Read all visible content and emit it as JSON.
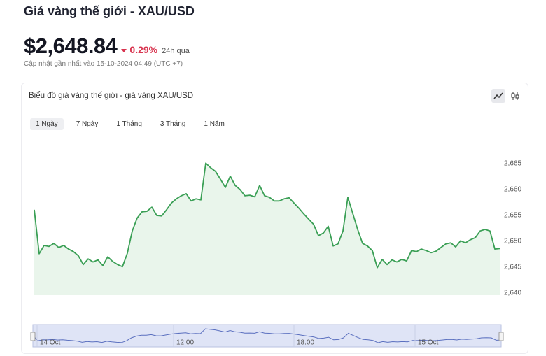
{
  "header": {
    "title": "Giá vàng thế giới - XAU/USD",
    "price": "$2,648.84",
    "change": "0.29%",
    "period": "24h qua",
    "updated": "Cập nhật gần nhất vào 15-10-2024 04:49 (UTC +7)"
  },
  "card": {
    "title": "Biểu đồ giá vàng thế giới - giá vàng XAU/USD",
    "tabs": [
      "1 Ngày",
      "7 Ngày",
      "1 Tháng",
      "3 Tháng",
      "1 Năm"
    ],
    "selected_tab": 0
  },
  "chart_data": {
    "type": "line",
    "color": "#3a9f55",
    "fill": "#e9f5eb",
    "values": [
      2656.1,
      2647.6,
      2649.2,
      2649.0,
      2649.6,
      2648.8,
      2649.2,
      2648.5,
      2648.0,
      2647.2,
      2645.5,
      2646.6,
      2646.0,
      2646.4,
      2645.3,
      2647.0,
      2646.1,
      2645.5,
      2645.1,
      2647.7,
      2652.0,
      2654.5,
      2655.7,
      2655.8,
      2656.6,
      2655.0,
      2654.9,
      2656.1,
      2657.4,
      2658.2,
      2658.8,
      2659.2,
      2657.8,
      2658.2,
      2658.0,
      2665.1,
      2664.2,
      2663.5,
      2662.0,
      2660.4,
      2662.6,
      2660.8,
      2660.0,
      2658.8,
      2658.9,
      2658.6,
      2660.8,
      2658.8,
      2658.5,
      2657.8,
      2657.8,
      2658.2,
      2658.4,
      2657.4,
      2656.4,
      2655.3,
      2654.3,
      2653.3,
      2651.1,
      2651.6,
      2652.9,
      2649.1,
      2649.5,
      2652.0,
      2658.5,
      2655.4,
      2652.3,
      2649.6,
      2649.1,
      2648.2,
      2644.9,
      2646.5,
      2645.5,
      2646.4,
      2646.0,
      2646.5,
      2646.2,
      2648.2,
      2648.0,
      2648.5,
      2648.2,
      2647.8,
      2648.1,
      2648.8,
      2649.5,
      2649.7,
      2648.9,
      2650.1,
      2649.7,
      2650.3,
      2650.7,
      2652.0,
      2652.3,
      2652.0,
      2648.5,
      2648.6
    ],
    "ylim": [
      2640,
      2670
    ],
    "yticks": [
      {
        "value": 2640,
        "label": "2,640"
      },
      {
        "value": 2645,
        "label": "2,645"
      },
      {
        "value": 2650,
        "label": "2,650"
      },
      {
        "value": 2655,
        "label": "2,655"
      },
      {
        "value": 2660,
        "label": "2,660"
      },
      {
        "value": 2665,
        "label": "2,665"
      }
    ]
  },
  "navigator": {
    "labels": [
      "14 Oct",
      "12:00",
      "18:00",
      "15 Oct"
    ]
  }
}
